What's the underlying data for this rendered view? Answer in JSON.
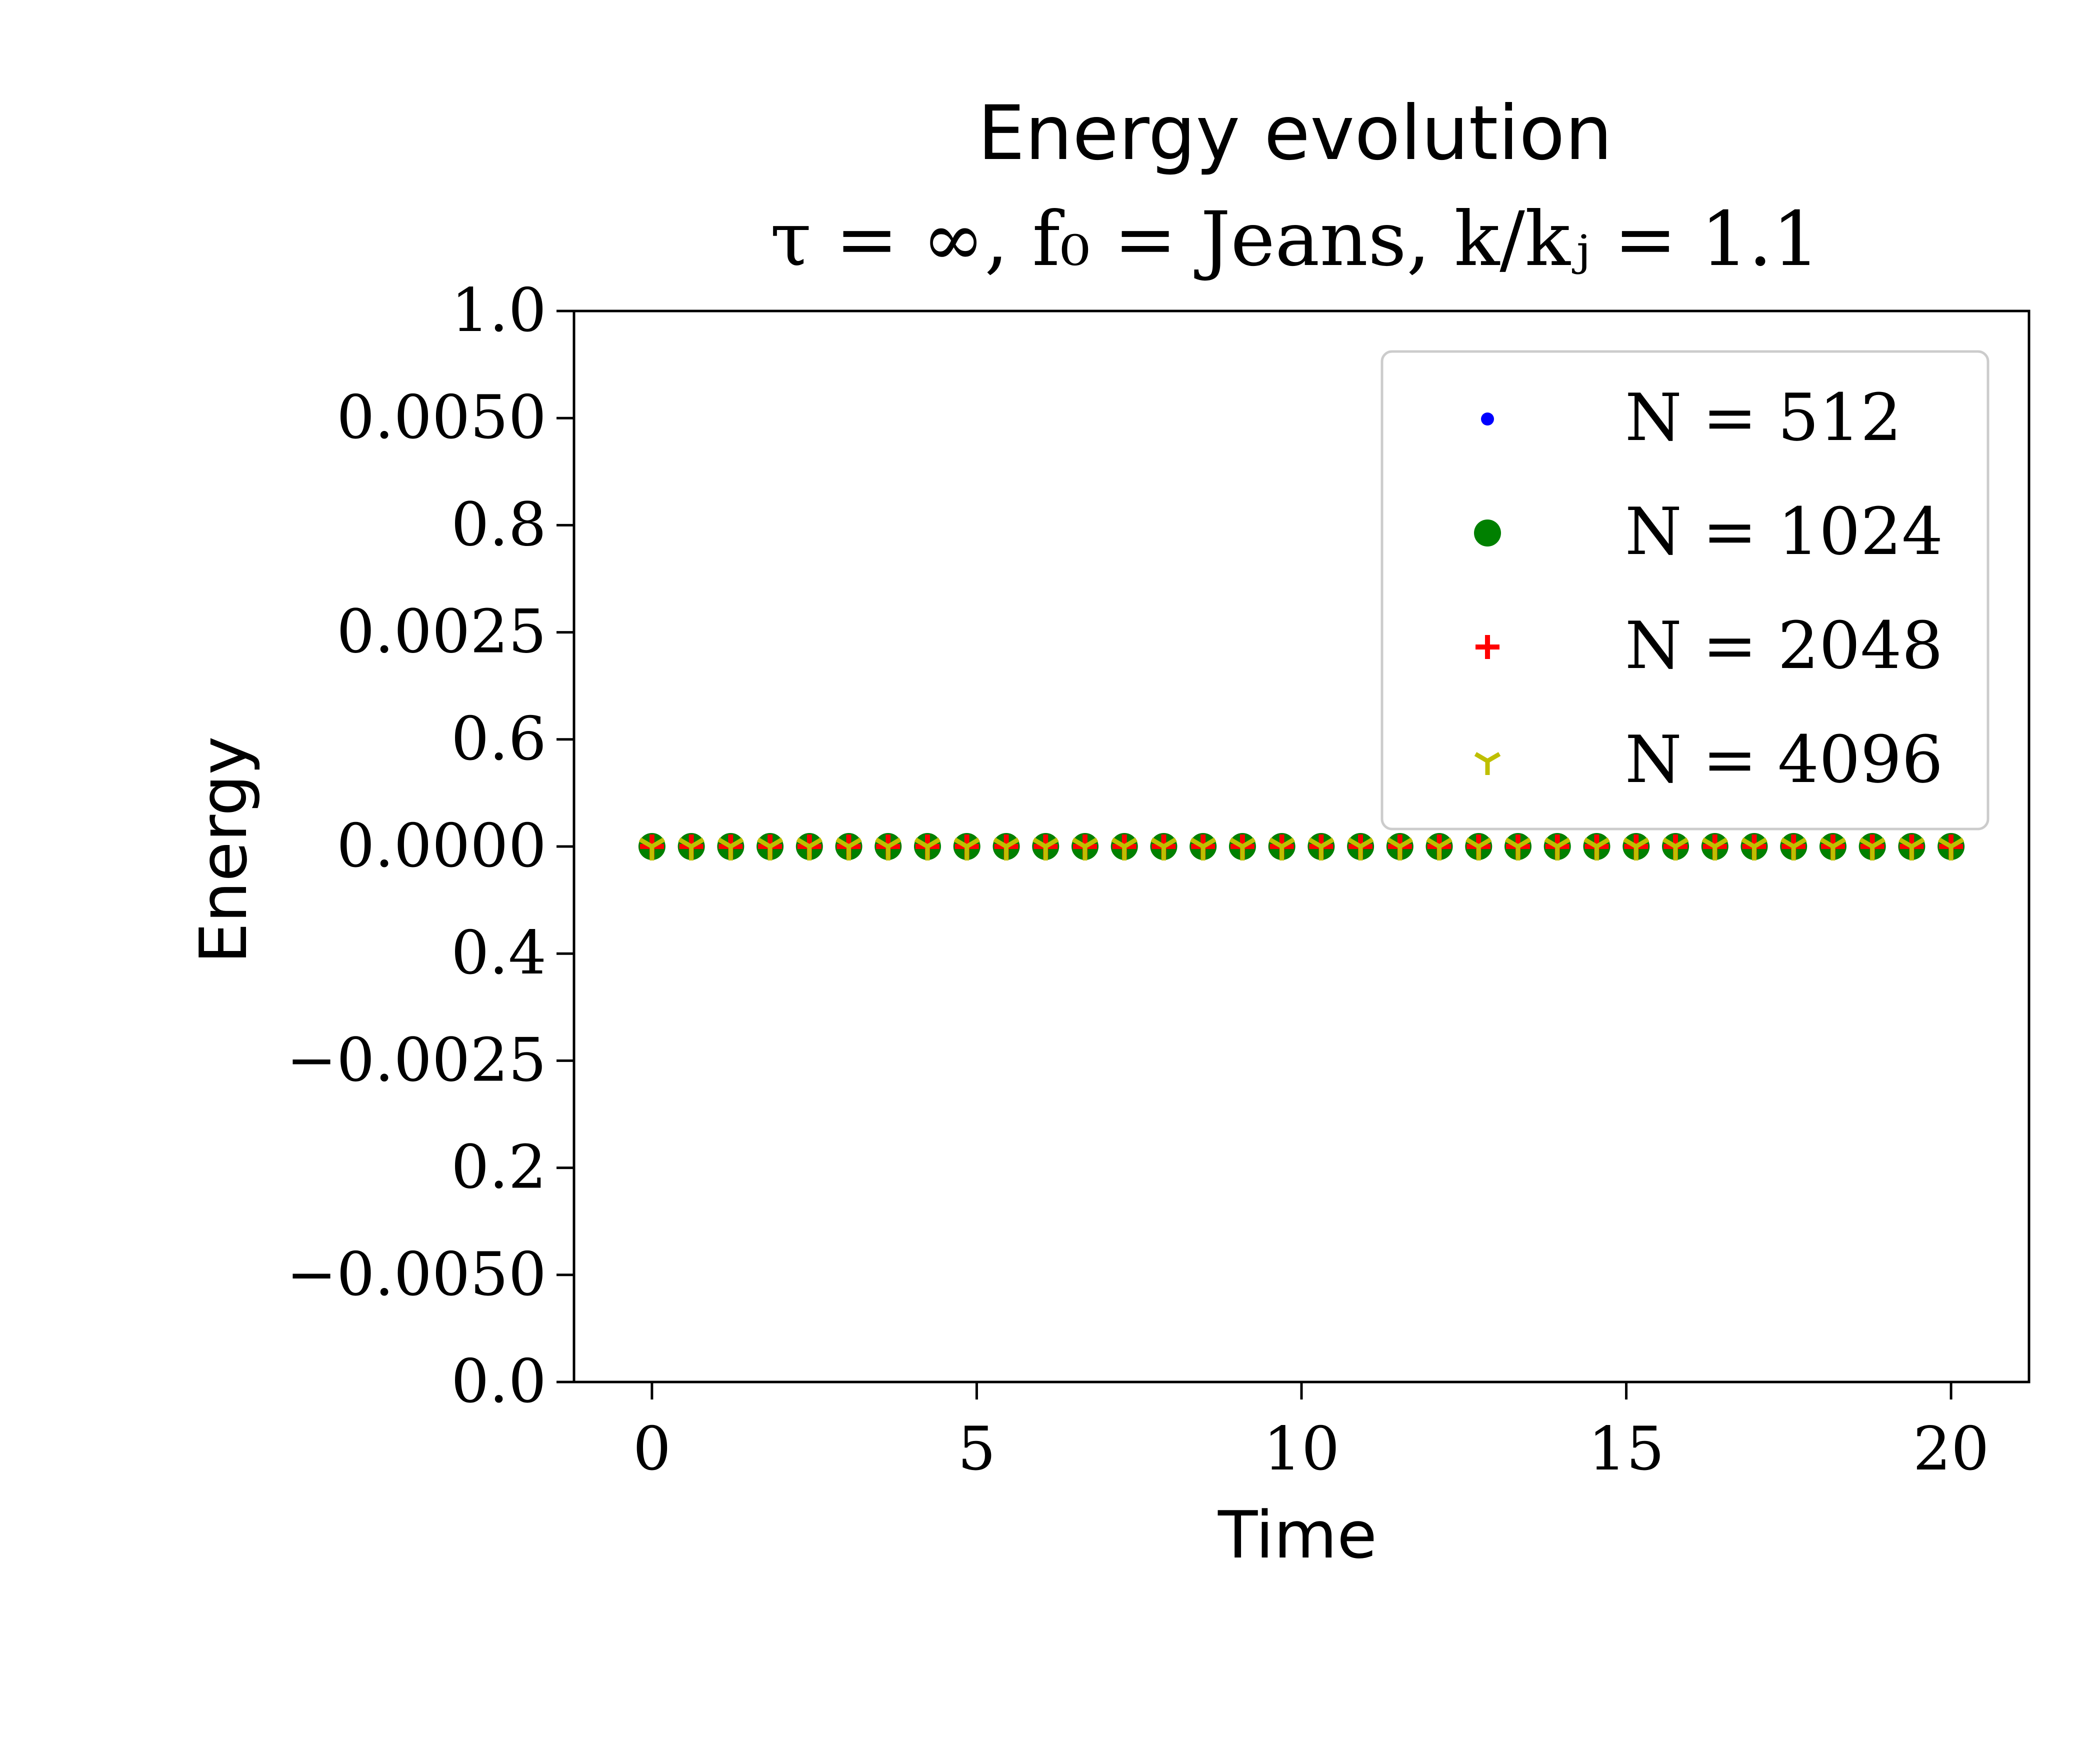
{
  "chart_data": {
    "type": "scatter",
    "title": "Energy evolution",
    "subtitle": "τ = ∞, f₀ = Jeans, k/kⱼ = 1.1",
    "xlabel": "Time",
    "ylabel": "Energy",
    "xlim": [
      -1.2,
      21.2
    ],
    "x_ticks": [
      "0",
      "5",
      "10",
      "15",
      "20"
    ],
    "y_ticks_primary": {
      "ylim": [
        0.0,
        1.0
      ],
      "labels": [
        "0.0",
        "0.2",
        "0.4",
        "0.6",
        "0.8",
        "1.0"
      ]
    },
    "y_ticks_secondary": {
      "ylim": [
        -0.00625,
        0.00625
      ],
      "labels": [
        "−0.0050",
        "−0.0025",
        "0.0000",
        "0.0025",
        "0.0050"
      ]
    },
    "grid": false,
    "legend_position": "top-right",
    "series": [
      {
        "name": "N = 512",
        "marker": "point",
        "color": "#0000ff",
        "x": [
          0,
          0.606,
          1.212,
          1.818,
          2.424,
          3.03,
          3.636,
          4.242,
          4.848,
          5.455,
          6.061,
          6.667,
          7.273,
          7.879,
          8.485,
          9.091,
          9.697,
          10.303,
          10.909,
          11.515,
          12.121,
          12.727,
          13.333,
          13.939,
          14.545,
          15.152,
          15.758,
          16.364,
          16.97,
          17.576,
          18.182,
          18.788,
          19.394,
          20
        ],
        "y": [
          0,
          0,
          0,
          0,
          0,
          0,
          0,
          0,
          0,
          0,
          0,
          0,
          0,
          0,
          0,
          0,
          0,
          0,
          0,
          0,
          0,
          0,
          0,
          0,
          0,
          0,
          0,
          0,
          0,
          0,
          0,
          0,
          0,
          0
        ]
      },
      {
        "name": "N = 1024",
        "marker": "circle",
        "color": "#008000",
        "x": [
          0,
          0.606,
          1.212,
          1.818,
          2.424,
          3.03,
          3.636,
          4.242,
          4.848,
          5.455,
          6.061,
          6.667,
          7.273,
          7.879,
          8.485,
          9.091,
          9.697,
          10.303,
          10.909,
          11.515,
          12.121,
          12.727,
          13.333,
          13.939,
          14.545,
          15.152,
          15.758,
          16.364,
          16.97,
          17.576,
          18.182,
          18.788,
          19.394,
          20
        ],
        "y": [
          0,
          0,
          0,
          0,
          0,
          0,
          0,
          0,
          0,
          0,
          0,
          0,
          0,
          0,
          0,
          0,
          0,
          0,
          0,
          0,
          0,
          0,
          0,
          0,
          0,
          0,
          0,
          0,
          0,
          0,
          0,
          0,
          0,
          0
        ]
      },
      {
        "name": "N = 2048",
        "marker": "plus",
        "color": "#ff0000",
        "x": [
          0,
          0.606,
          1.212,
          1.818,
          2.424,
          3.03,
          3.636,
          4.242,
          4.848,
          5.455,
          6.061,
          6.667,
          7.273,
          7.879,
          8.485,
          9.091,
          9.697,
          10.303,
          10.909,
          11.515,
          12.121,
          12.727,
          13.333,
          13.939,
          14.545,
          15.152,
          15.758,
          16.364,
          16.97,
          17.576,
          18.182,
          18.788,
          19.394,
          20
        ],
        "y": [
          0,
          0,
          0,
          0,
          0,
          0,
          0,
          0,
          0,
          0,
          0,
          0,
          0,
          0,
          0,
          0,
          0,
          0,
          0,
          0,
          0,
          0,
          0,
          0,
          0,
          0,
          0,
          0,
          0,
          0,
          0,
          0,
          0,
          0
        ]
      },
      {
        "name": "N = 4096",
        "marker": "tri_down",
        "color": "#bfbf00",
        "x": [
          0,
          0.606,
          1.212,
          1.818,
          2.424,
          3.03,
          3.636,
          4.242,
          4.848,
          5.455,
          6.061,
          6.667,
          7.273,
          7.879,
          8.485,
          9.091,
          9.697,
          10.303,
          10.909,
          11.515,
          12.121,
          12.727,
          13.333,
          13.939,
          14.545,
          15.152,
          15.758,
          16.364,
          16.97,
          17.576,
          18.182,
          18.788,
          19.394,
          20
        ],
        "y": [
          0,
          0,
          0,
          0,
          0,
          0,
          0,
          0,
          0,
          0,
          0,
          0,
          0,
          0,
          0,
          0,
          0,
          0,
          0,
          0,
          0,
          0,
          0,
          0,
          0,
          0,
          0,
          0,
          0,
          0,
          0,
          0,
          0,
          0
        ]
      }
    ]
  }
}
